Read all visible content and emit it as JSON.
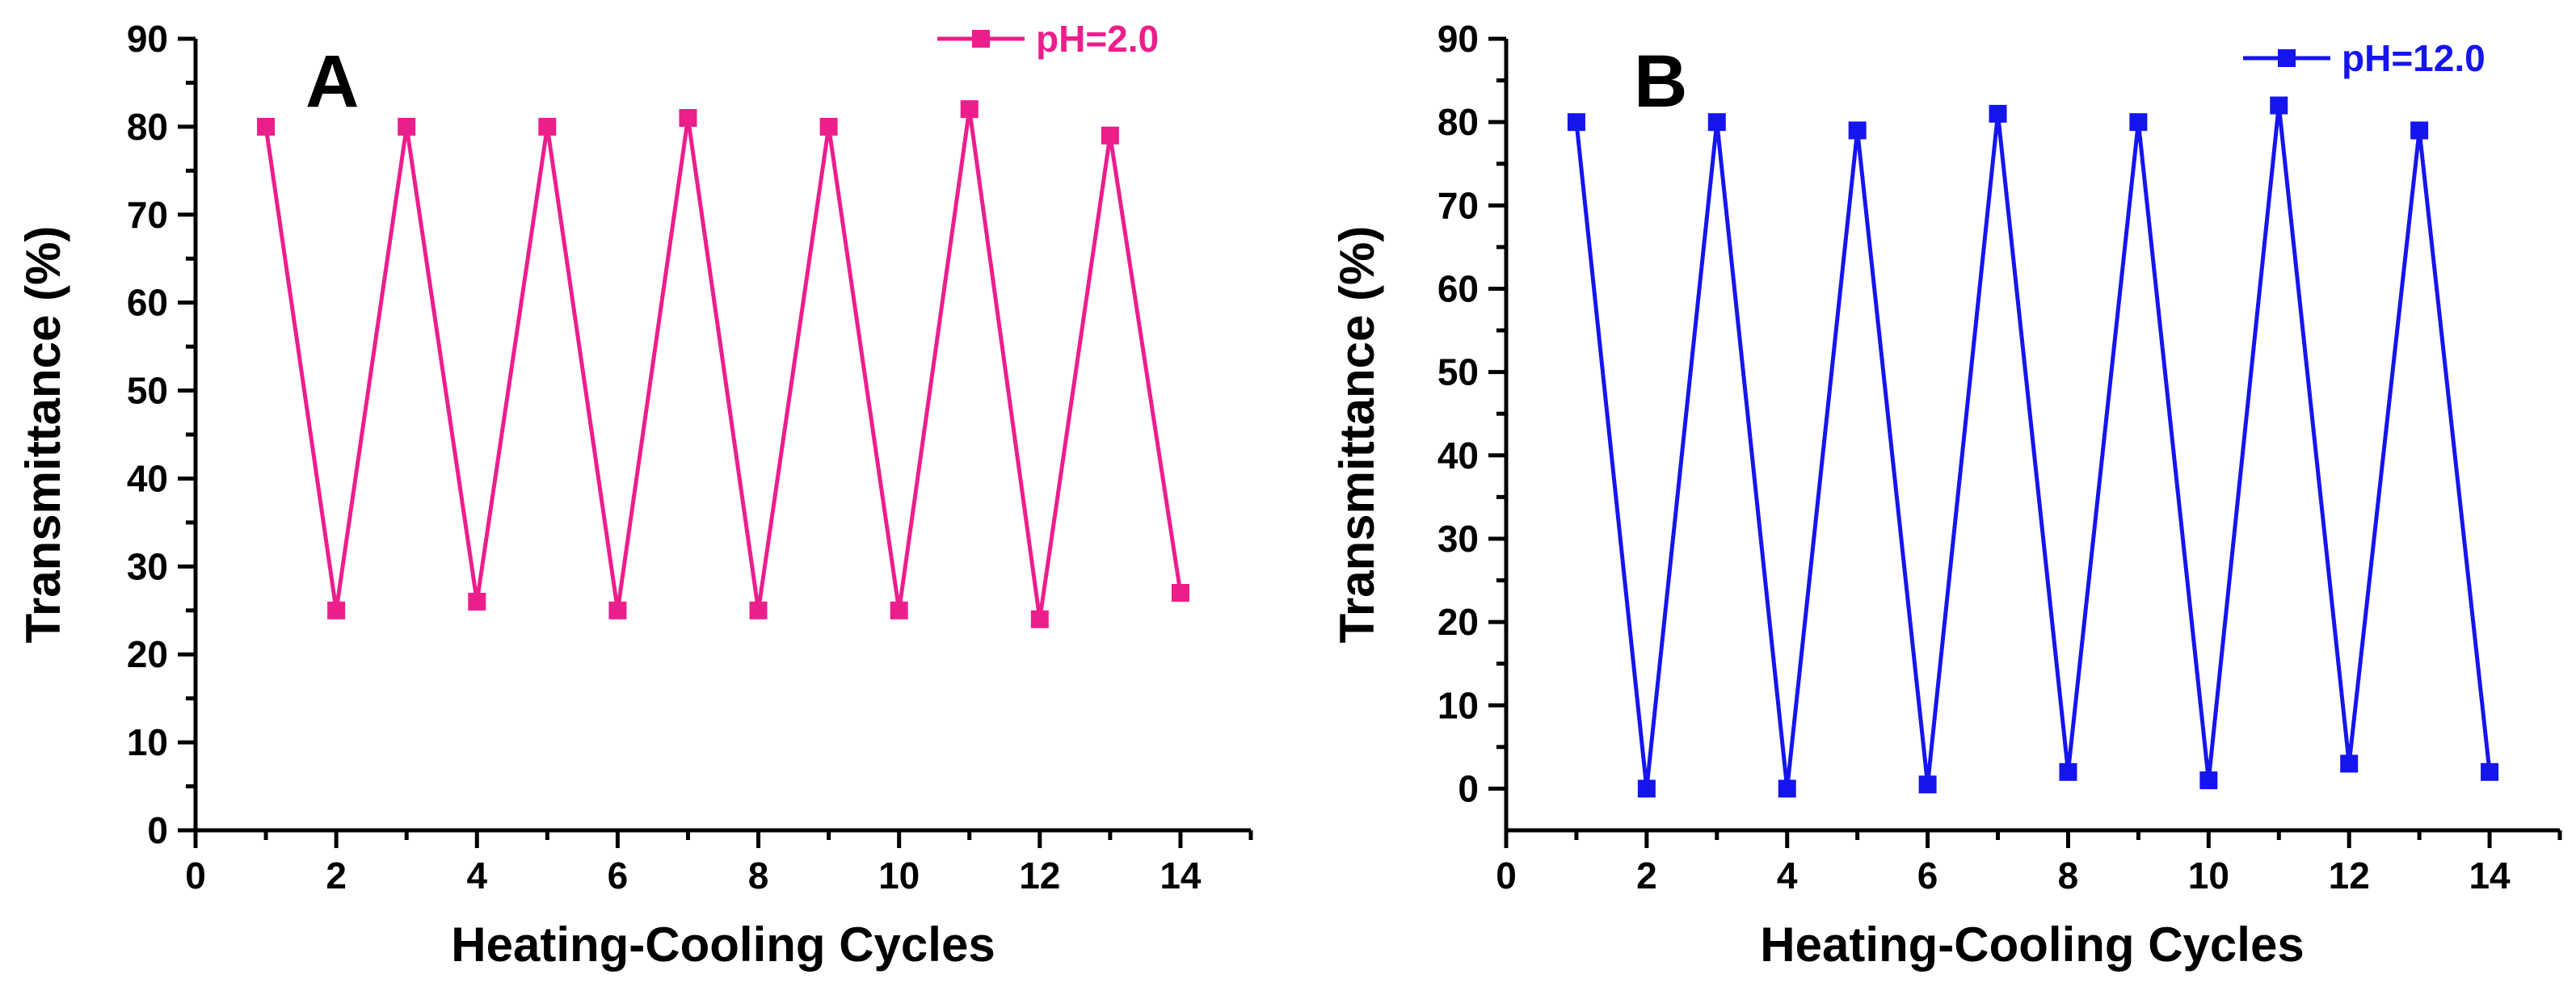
{
  "chart_data": [
    {
      "type": "line",
      "panel_label": "A",
      "xlabel": "Heating-Cooling Cycles",
      "ylabel": "Transmittance (%)",
      "xlim": [
        0,
        15
      ],
      "ylim": [
        0,
        90
      ],
      "xticks": [
        0,
        2,
        4,
        6,
        8,
        10,
        12,
        14
      ],
      "yticks": [
        0,
        10,
        20,
        30,
        40,
        50,
        60,
        70,
        80,
        90
      ],
      "grid": false,
      "legend": "top-right",
      "series": [
        {
          "name": "pH=2.0",
          "color": "#ec1e8c",
          "marker": "square",
          "x": [
            1,
            2,
            3,
            4,
            5,
            6,
            7,
            8,
            9,
            10,
            11,
            12,
            13,
            14
          ],
          "y": [
            80,
            25,
            80,
            26,
            80,
            25,
            81,
            25,
            80,
            25,
            82,
            24,
            79,
            27
          ]
        }
      ]
    },
    {
      "type": "line",
      "panel_label": "B",
      "xlabel": "Heating-Cooling Cycles",
      "ylabel": "Transmittance (%)",
      "xlim": [
        0,
        15
      ],
      "ylim": [
        -5,
        90
      ],
      "xticks": [
        0,
        2,
        4,
        6,
        8,
        10,
        12,
        14
      ],
      "yticks": [
        0,
        10,
        20,
        30,
        40,
        50,
        60,
        70,
        80,
        90
      ],
      "grid": false,
      "legend": "top-right",
      "series": [
        {
          "name": "pH=12.0",
          "color": "#1515ee",
          "marker": "square",
          "x": [
            1,
            2,
            3,
            4,
            5,
            6,
            7,
            8,
            9,
            10,
            11,
            12,
            13,
            14
          ],
          "y": [
            80,
            0,
            80,
            0,
            79,
            0.5,
            81,
            2,
            80,
            1,
            82,
            3,
            79,
            2
          ]
        }
      ]
    }
  ]
}
